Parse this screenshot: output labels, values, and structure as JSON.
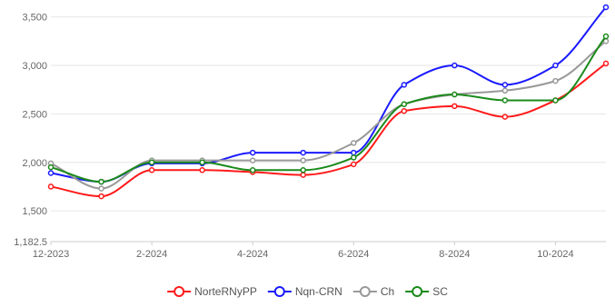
{
  "chart_data": {
    "type": "line",
    "title": "",
    "xlabel": "",
    "ylabel": "",
    "x": [
      "12-2023",
      "1-2024",
      "2-2024",
      "3-2024",
      "4-2024",
      "5-2024",
      "6-2024",
      "7-2024",
      "8-2024",
      "9-2024",
      "10-2024",
      "11-2024"
    ],
    "x_tick_labels": [
      "12-2023",
      "2-2024",
      "4-2024",
      "6-2024",
      "8-2024",
      "10-2024"
    ],
    "y_tick_labels": [
      "1,182.5",
      "1,500",
      "2,000",
      "2,500",
      "3,000",
      "3,500"
    ],
    "y_ticks": [
      1182.5,
      1500,
      2000,
      2500,
      3000,
      3500
    ],
    "ylim": [
      1182.5,
      3600
    ],
    "grid": true,
    "legend_position": "bottom",
    "series": [
      {
        "name": "NorteRNyPP",
        "color": "#ff1a1a",
        "values": [
          1750,
          1650,
          1920,
          1920,
          1900,
          1870,
          1980,
          2530,
          2580,
          2470,
          2640,
          3020
        ]
      },
      {
        "name": "Nqn-CRN",
        "color": "#1a1aff",
        "values": [
          1890,
          1800,
          1990,
          1990,
          2100,
          2100,
          2100,
          2800,
          3000,
          2800,
          3000,
          3600
        ]
      },
      {
        "name": "Ch",
        "color": "#999999",
        "values": [
          1990,
          1730,
          2020,
          2020,
          2020,
          2020,
          2200,
          2600,
          2700,
          2740,
          2840,
          3250
        ]
      },
      {
        "name": "SC",
        "color": "#1a8a1a",
        "values": [
          1950,
          1800,
          2000,
          2000,
          1920,
          1920,
          2050,
          2600,
          2700,
          2640,
          2640,
          3300
        ]
      }
    ]
  }
}
